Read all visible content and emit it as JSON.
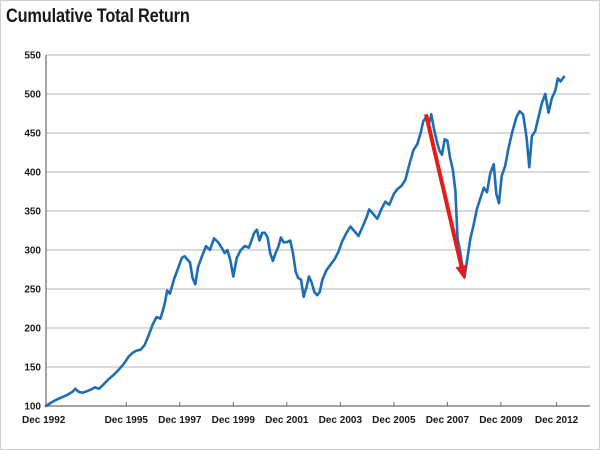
{
  "chart_data": {
    "type": "line",
    "title": "Cumulative Total Return",
    "xlabel": "",
    "ylabel": "",
    "ylim": [
      100,
      550
    ],
    "yticks": [
      100,
      150,
      200,
      250,
      300,
      350,
      400,
      450,
      500,
      550
    ],
    "xlim": [
      1992.92,
      2013.25
    ],
    "xticks": [
      {
        "value": 1992.92,
        "label": "Dec 1992"
      },
      {
        "value": 1995.92,
        "label": "Dec 1995"
      },
      {
        "value": 1997.92,
        "label": "Dec 1997"
      },
      {
        "value": 1999.92,
        "label": "Dec 1999"
      },
      {
        "value": 2001.92,
        "label": "Dec 2001"
      },
      {
        "value": 2003.92,
        "label": "Dec 2003"
      },
      {
        "value": 2005.92,
        "label": "Dec 2005"
      },
      {
        "value": 2007.92,
        "label": "Dec 2007"
      },
      {
        "value": 2009.92,
        "label": "Dec 2009"
      },
      {
        "value": 2012.0,
        "label": "Dec 2012"
      }
    ],
    "grid": "horizontal",
    "series": [
      {
        "color": "#1f6db5",
        "points": [
          [
            1992.92,
            100
          ],
          [
            1993.1,
            104
          ],
          [
            1993.3,
            108
          ],
          [
            1993.5,
            111
          ],
          [
            1993.7,
            114
          ],
          [
            1993.9,
            118
          ],
          [
            1994.02,
            122
          ],
          [
            1994.15,
            118
          ],
          [
            1994.3,
            117
          ],
          [
            1994.45,
            119
          ],
          [
            1994.6,
            121
          ],
          [
            1994.75,
            124
          ],
          [
            1994.9,
            122
          ],
          [
            1995.05,
            127
          ],
          [
            1995.25,
            134
          ],
          [
            1995.45,
            140
          ],
          [
            1995.65,
            147
          ],
          [
            1995.85,
            155
          ],
          [
            1996.0,
            163
          ],
          [
            1996.15,
            168
          ],
          [
            1996.3,
            171
          ],
          [
            1996.45,
            172
          ],
          [
            1996.6,
            178
          ],
          [
            1996.75,
            190
          ],
          [
            1996.9,
            204
          ],
          [
            1997.05,
            214
          ],
          [
            1997.2,
            212
          ],
          [
            1997.35,
            230
          ],
          [
            1997.45,
            248
          ],
          [
            1997.55,
            244
          ],
          [
            1997.7,
            262
          ],
          [
            1997.85,
            276
          ],
          [
            1998.0,
            290
          ],
          [
            1998.1,
            292
          ],
          [
            1998.2,
            288
          ],
          [
            1998.3,
            284
          ],
          [
            1998.4,
            264
          ],
          [
            1998.5,
            256
          ],
          [
            1998.6,
            278
          ],
          [
            1998.75,
            292
          ],
          [
            1998.9,
            305
          ],
          [
            1999.05,
            300
          ],
          [
            1999.2,
            315
          ],
          [
            1999.35,
            310
          ],
          [
            1999.5,
            302
          ],
          [
            1999.6,
            296
          ],
          [
            1999.7,
            300
          ],
          [
            1999.8,
            288
          ],
          [
            1999.92,
            266
          ],
          [
            2000.05,
            290
          ],
          [
            2000.2,
            300
          ],
          [
            2000.35,
            305
          ],
          [
            2000.5,
            303
          ],
          [
            2000.6,
            312
          ],
          [
            2000.7,
            322
          ],
          [
            2000.8,
            326
          ],
          [
            2000.9,
            312
          ],
          [
            2001.0,
            322
          ],
          [
            2001.1,
            322
          ],
          [
            2001.2,
            316
          ],
          [
            2001.3,
            296
          ],
          [
            2001.4,
            286
          ],
          [
            2001.5,
            296
          ],
          [
            2001.6,
            304
          ],
          [
            2001.7,
            316
          ],
          [
            2001.8,
            310
          ],
          [
            2001.92,
            310
          ],
          [
            2002.05,
            312
          ],
          [
            2002.15,
            296
          ],
          [
            2002.25,
            272
          ],
          [
            2002.35,
            264
          ],
          [
            2002.45,
            262
          ],
          [
            2002.55,
            240
          ],
          [
            2002.65,
            252
          ],
          [
            2002.75,
            266
          ],
          [
            2002.85,
            258
          ],
          [
            2002.95,
            246
          ],
          [
            2003.05,
            242
          ],
          [
            2003.15,
            246
          ],
          [
            2003.25,
            262
          ],
          [
            2003.4,
            274
          ],
          [
            2003.55,
            281
          ],
          [
            2003.7,
            288
          ],
          [
            2003.85,
            298
          ],
          [
            2004.0,
            312
          ],
          [
            2004.15,
            322
          ],
          [
            2004.3,
            330
          ],
          [
            2004.45,
            324
          ],
          [
            2004.6,
            318
          ],
          [
            2004.75,
            330
          ],
          [
            2004.9,
            342
          ],
          [
            2005.0,
            352
          ],
          [
            2005.15,
            346
          ],
          [
            2005.3,
            340
          ],
          [
            2005.45,
            352
          ],
          [
            2005.6,
            362
          ],
          [
            2005.75,
            358
          ],
          [
            2005.92,
            372
          ],
          [
            2006.05,
            378
          ],
          [
            2006.2,
            382
          ],
          [
            2006.35,
            390
          ],
          [
            2006.5,
            410
          ],
          [
            2006.65,
            428
          ],
          [
            2006.8,
            436
          ],
          [
            2006.92,
            450
          ],
          [
            2007.02,
            465
          ],
          [
            2007.12,
            470
          ],
          [
            2007.22,
            460
          ],
          [
            2007.32,
            474
          ],
          [
            2007.42,
            455
          ],
          [
            2007.52,
            440
          ],
          [
            2007.62,
            428
          ],
          [
            2007.72,
            422
          ],
          [
            2007.82,
            442
          ],
          [
            2007.92,
            440
          ],
          [
            2008.02,
            418
          ],
          [
            2008.12,
            404
          ],
          [
            2008.22,
            376
          ],
          [
            2008.3,
            315
          ],
          [
            2008.4,
            298
          ],
          [
            2008.48,
            278
          ],
          [
            2008.56,
            265
          ],
          [
            2008.66,
            288
          ],
          [
            2008.78,
            315
          ],
          [
            2008.9,
            332
          ],
          [
            2009.02,
            352
          ],
          [
            2009.15,
            366
          ],
          [
            2009.28,
            380
          ],
          [
            2009.4,
            374
          ],
          [
            2009.52,
            398
          ],
          [
            2009.65,
            410
          ],
          [
            2009.75,
            372
          ],
          [
            2009.85,
            360
          ],
          [
            2009.95,
            395
          ],
          [
            2010.08,
            408
          ],
          [
            2010.2,
            430
          ],
          [
            2010.35,
            452
          ],
          [
            2010.5,
            470
          ],
          [
            2010.62,
            478
          ],
          [
            2010.75,
            474
          ],
          [
            2010.88,
            444
          ],
          [
            2010.98,
            406
          ],
          [
            2011.08,
            446
          ],
          [
            2011.2,
            452
          ],
          [
            2011.32,
            470
          ],
          [
            2011.45,
            488
          ],
          [
            2011.58,
            500
          ],
          [
            2011.7,
            476
          ],
          [
            2011.82,
            494
          ],
          [
            2011.95,
            504
          ],
          [
            2012.05,
            520
          ],
          [
            2012.15,
            516
          ],
          [
            2012.28,
            522
          ]
        ]
      }
    ],
    "annotations": [
      {
        "type": "arrow",
        "color": "#e51c1c",
        "from": [
          2007.12,
          474
        ],
        "to": [
          2008.56,
          262
        ]
      }
    ]
  }
}
